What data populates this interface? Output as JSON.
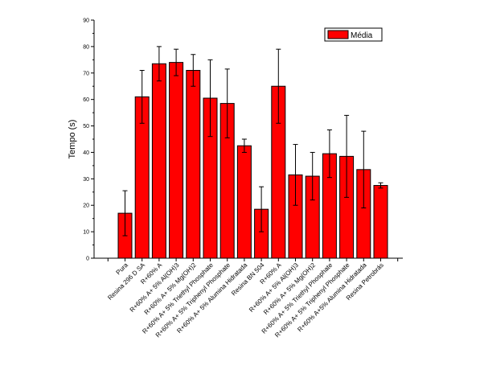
{
  "chart_data": {
    "type": "bar",
    "title": "",
    "xlabel": "",
    "ylabel": "Tempo (s)",
    "ylim": [
      0,
      90
    ],
    "yticks": [
      0,
      10,
      20,
      30,
      40,
      50,
      60,
      70,
      80,
      90
    ],
    "grid": false,
    "legend_position": "top-right",
    "bar_color": "#ff0000",
    "categories": [
      "Pura",
      "Resina 296 D SA",
      "R+60% A",
      "R+60% A+ 5% Al(OH)3",
      "R+60% A+ 5% Mg(OH)2",
      "R+60% A+ 5% Triethyl Phosphate",
      "R+60% A+ 5% Triphenyl Phosphate",
      "R+60% A+ 5% Alumina Hidratada",
      "Resina BN 504",
      "R+60% A",
      "R+60% A+ 5% Al(OH)3",
      "R+60% A+ 5% Mg(OH)2",
      "R+60% A+ 5% Triethyl Phosphate",
      "R+60% A+ 5% Triphenyl Phosphate",
      "R+60% A+5% Alumina Hidratada",
      "Resina Petrobrás"
    ],
    "series": [
      {
        "name": "Média",
        "values": [
          17,
          61,
          73.5,
          74,
          71,
          60.5,
          58.5,
          42.5,
          18.5,
          65,
          31.5,
          31,
          39.5,
          38.5,
          33.5,
          27.5
        ],
        "error": [
          8.5,
          10,
          6.5,
          5,
          6,
          14.5,
          13,
          2.5,
          8.5,
          14,
          11.5,
          9,
          9,
          15.5,
          14.5,
          1
        ]
      }
    ]
  }
}
